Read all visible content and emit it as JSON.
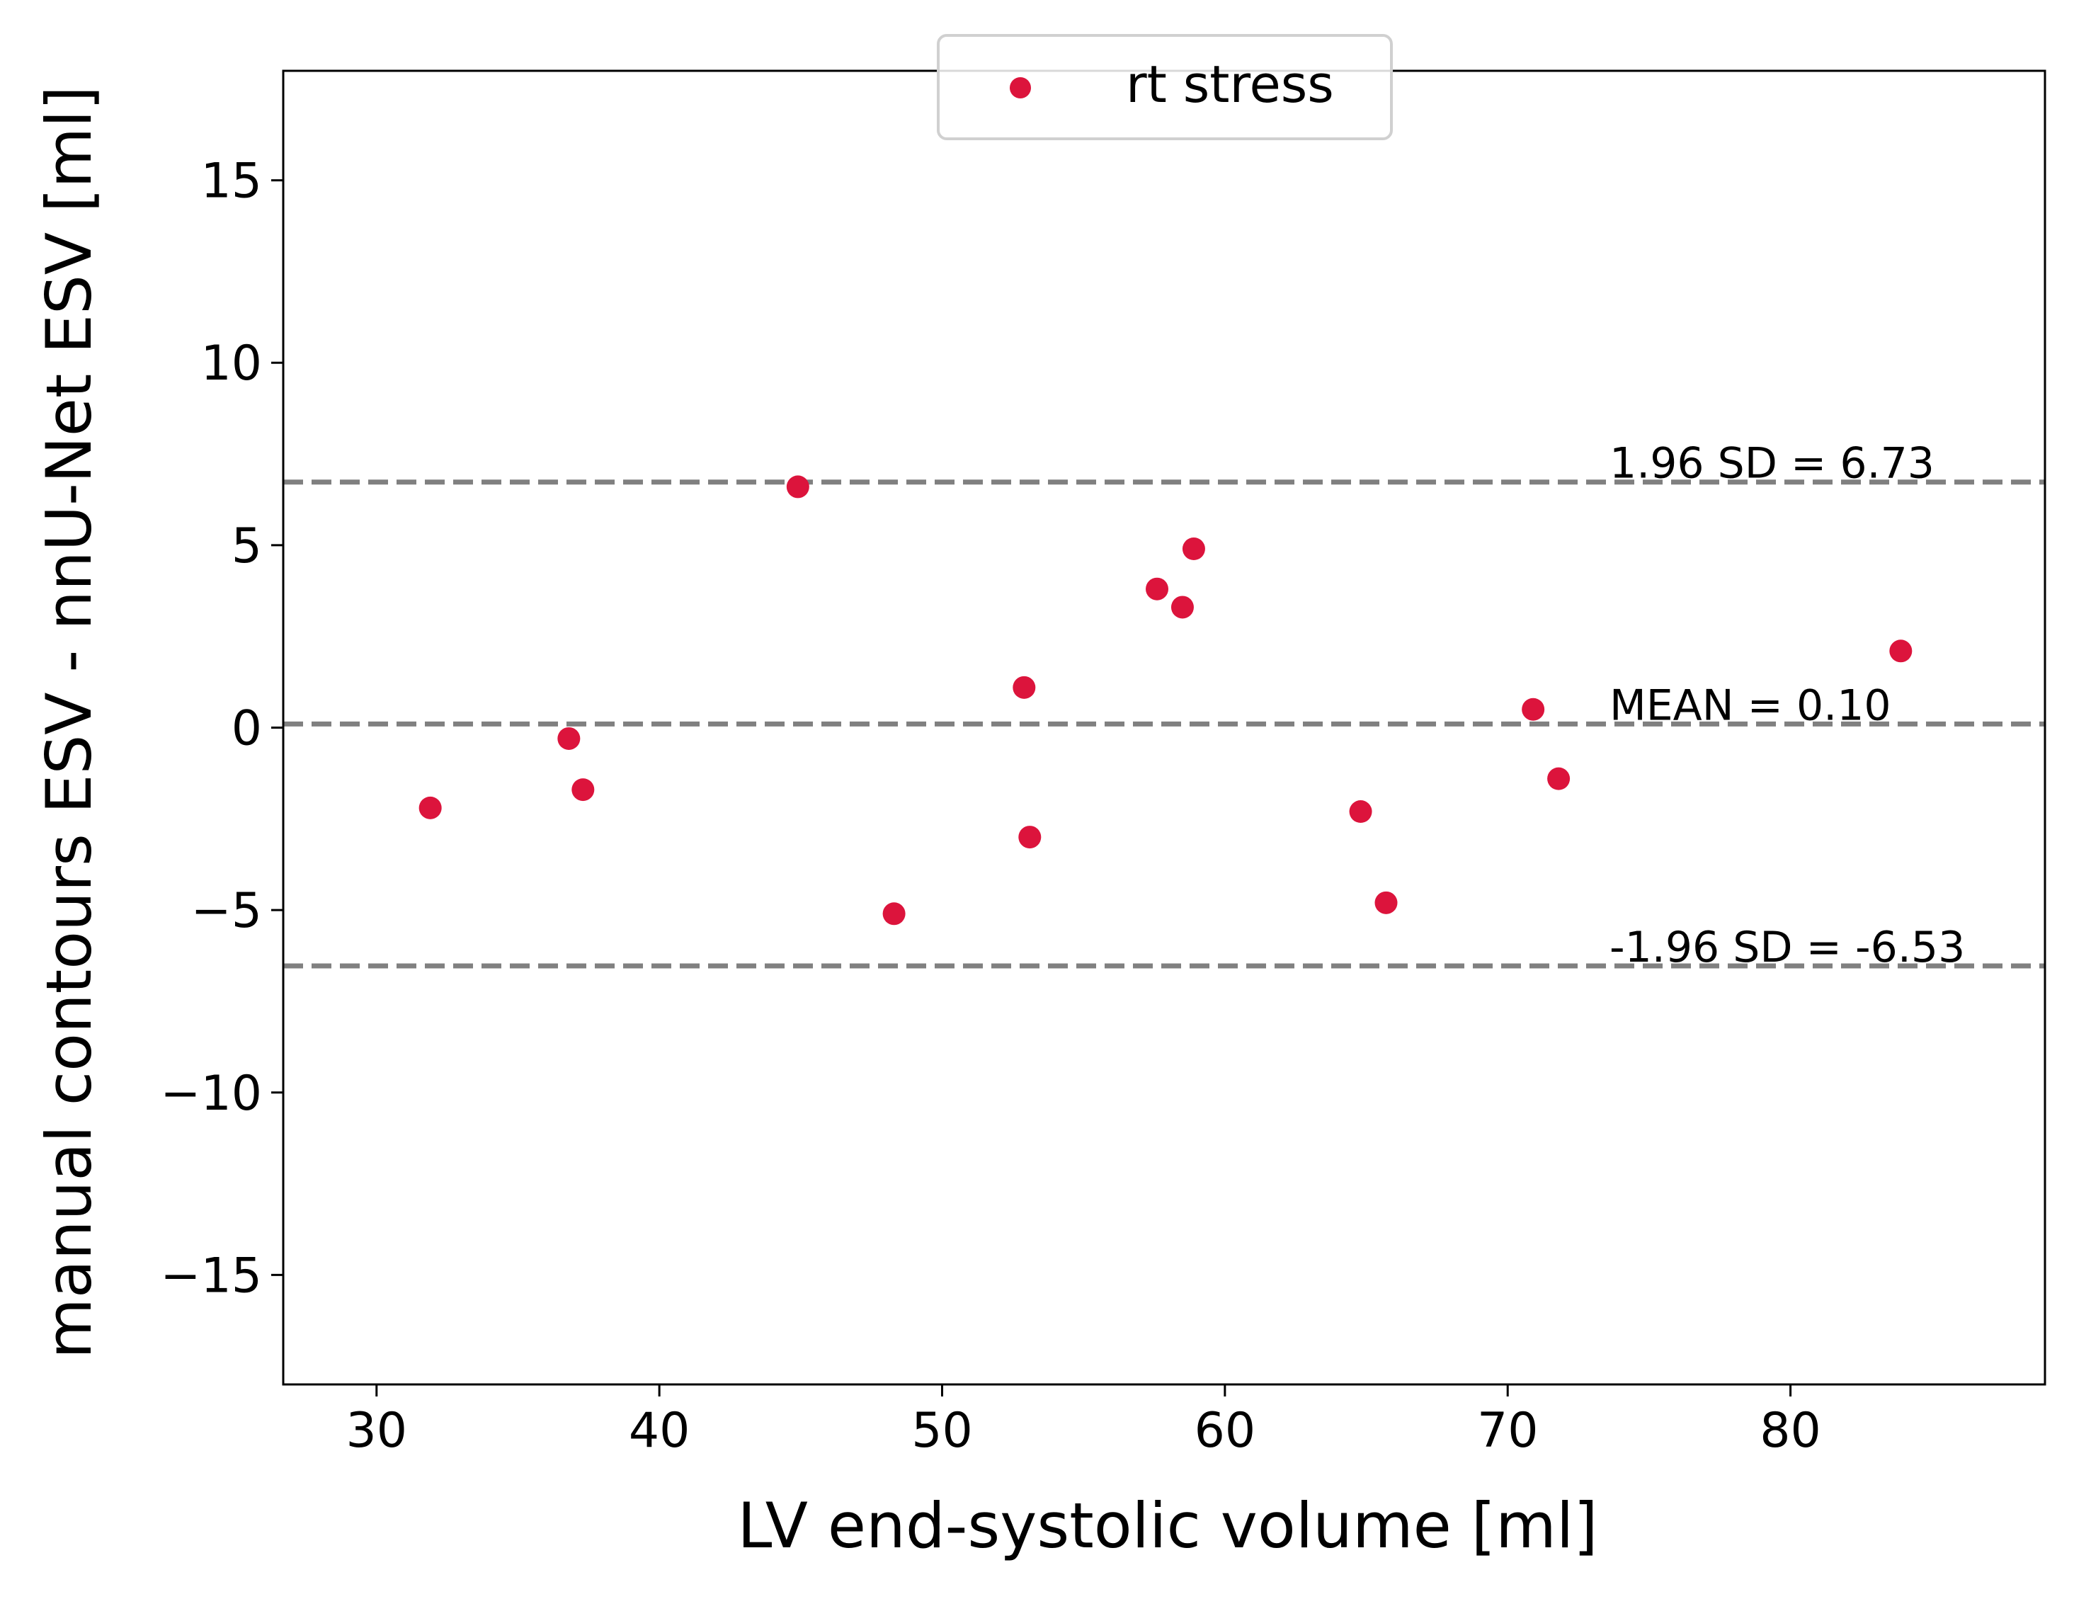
{
  "chart_data": {
    "type": "scatter",
    "title": "",
    "xlabel": "LV end-systolic volume [ml]",
    "ylabel": "manual contours ESV - nnU-Net ESV [ml]",
    "xlim": [
      26.7,
      89.0
    ],
    "ylim": [
      -18,
      18
    ],
    "x_ticks": [
      30,
      40,
      50,
      60,
      70,
      80
    ],
    "y_ticks": [
      15,
      10,
      5,
      0,
      -5,
      -10,
      -15
    ],
    "x_tick_labels": [
      "30",
      "40",
      "50",
      "60",
      "70",
      "80"
    ],
    "y_tick_labels": [
      "15",
      "10",
      "5",
      "0",
      "−5",
      "−10",
      "−15"
    ],
    "grid": false,
    "legend": {
      "position": "top-center",
      "entries": [
        "rt stress"
      ]
    },
    "series": [
      {
        "name": "rt stress",
        "color": "#dc143c",
        "points": [
          {
            "x": 31.9,
            "y": -2.2
          },
          {
            "x": 36.8,
            "y": -0.3
          },
          {
            "x": 37.3,
            "y": -1.7
          },
          {
            "x": 44.9,
            "y": 6.6
          },
          {
            "x": 48.3,
            "y": -5.1
          },
          {
            "x": 52.9,
            "y": 1.1
          },
          {
            "x": 53.1,
            "y": -3.0
          },
          {
            "x": 57.6,
            "y": 3.8
          },
          {
            "x": 58.5,
            "y": 3.3
          },
          {
            "x": 58.9,
            "y": 4.9
          },
          {
            "x": 64.8,
            "y": -2.3
          },
          {
            "x": 65.7,
            "y": -4.8
          },
          {
            "x": 70.9,
            "y": 0.5
          },
          {
            "x": 71.8,
            "y": -1.4
          },
          {
            "x": 83.9,
            "y": 2.1
          }
        ]
      }
    ],
    "reference_lines": [
      {
        "y": 6.73,
        "label": "1.96 SD = 6.73",
        "color": "#808080",
        "style": "dashed"
      },
      {
        "y": 0.1,
        "label": "MEAN = 0.10",
        "color": "#808080",
        "style": "dashed"
      },
      {
        "y": -6.53,
        "label": "-1.96 SD = -6.53",
        "color": "#808080",
        "style": "dashed"
      }
    ]
  }
}
